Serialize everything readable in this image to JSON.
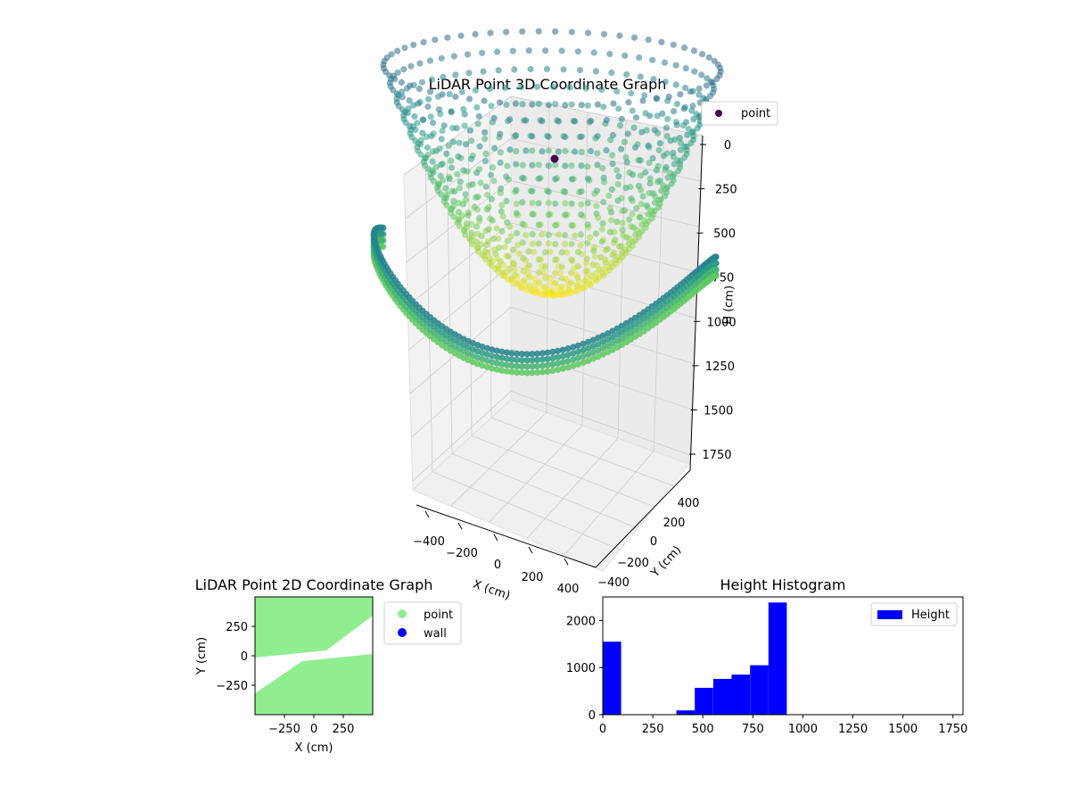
{
  "chart_data": [
    {
      "type": "scatter3d",
      "title": "LiDAR Point 3D Coordinate Graph",
      "xlabel": "X (cm)",
      "ylabel": "Y (cm)",
      "zlabel": "H (cm)",
      "xlim": [
        -500,
        500
      ],
      "ylim": [
        -500,
        500
      ],
      "zlim": [
        1800,
        0
      ],
      "x_ticks": [
        "−400",
        "−200",
        "0",
        "200",
        "400"
      ],
      "y_ticks": [
        "−400",
        "−200",
        "0",
        "200",
        "400"
      ],
      "z_ticks": [
        "0",
        "250",
        "500",
        "750",
        "1000",
        "1250",
        "1500",
        "1750"
      ],
      "legend": [
        "point"
      ],
      "legend_placement": "top-right",
      "colormap": "viridis",
      "grid": true,
      "surface": {
        "rim_height": 250,
        "center_height": 900,
        "radius": 450,
        "outer_band_height": 1000
      },
      "colors": {
        "legend_marker": "#440154"
      }
    },
    {
      "type": "scatter",
      "title": "LiDAR Point 2D Coordinate Graph",
      "xlabel": "X (cm)",
      "ylabel": "Y (cm)",
      "xlim": [
        -500,
        500
      ],
      "ylim": [
        -500,
        500
      ],
      "x_ticks": [
        "−250",
        "0",
        "250"
      ],
      "y_ticks": [
        "250",
        "0",
        "−250"
      ],
      "legend_placement": "right",
      "series": [
        {
          "name": "point",
          "color": "#90ee90"
        },
        {
          "name": "wall",
          "color": "#0000ff"
        }
      ]
    },
    {
      "type": "bar",
      "title": "Height Histogram",
      "xlabel": "",
      "ylabel": "",
      "xlim": [
        0,
        1800
      ],
      "ylim": [
        0,
        2500
      ],
      "x_ticks": [
        "0",
        "250",
        "500",
        "750",
        "1000",
        "1250",
        "1500",
        "1750"
      ],
      "y_ticks": [
        "0",
        "1000",
        "2000"
      ],
      "legend": [
        "Height"
      ],
      "legend_placement": "top-right",
      "color": "#0000ff",
      "bin_width": 92,
      "bins": [
        {
          "x0": 0,
          "value": 1550
        },
        {
          "x0": 92,
          "value": 0
        },
        {
          "x0": 184,
          "value": 0
        },
        {
          "x0": 276,
          "value": 0
        },
        {
          "x0": 368,
          "value": 90
        },
        {
          "x0": 460,
          "value": 570
        },
        {
          "x0": 552,
          "value": 760
        },
        {
          "x0": 644,
          "value": 850
        },
        {
          "x0": 736,
          "value": 1050
        },
        {
          "x0": 828,
          "value": 2380
        }
      ]
    }
  ]
}
